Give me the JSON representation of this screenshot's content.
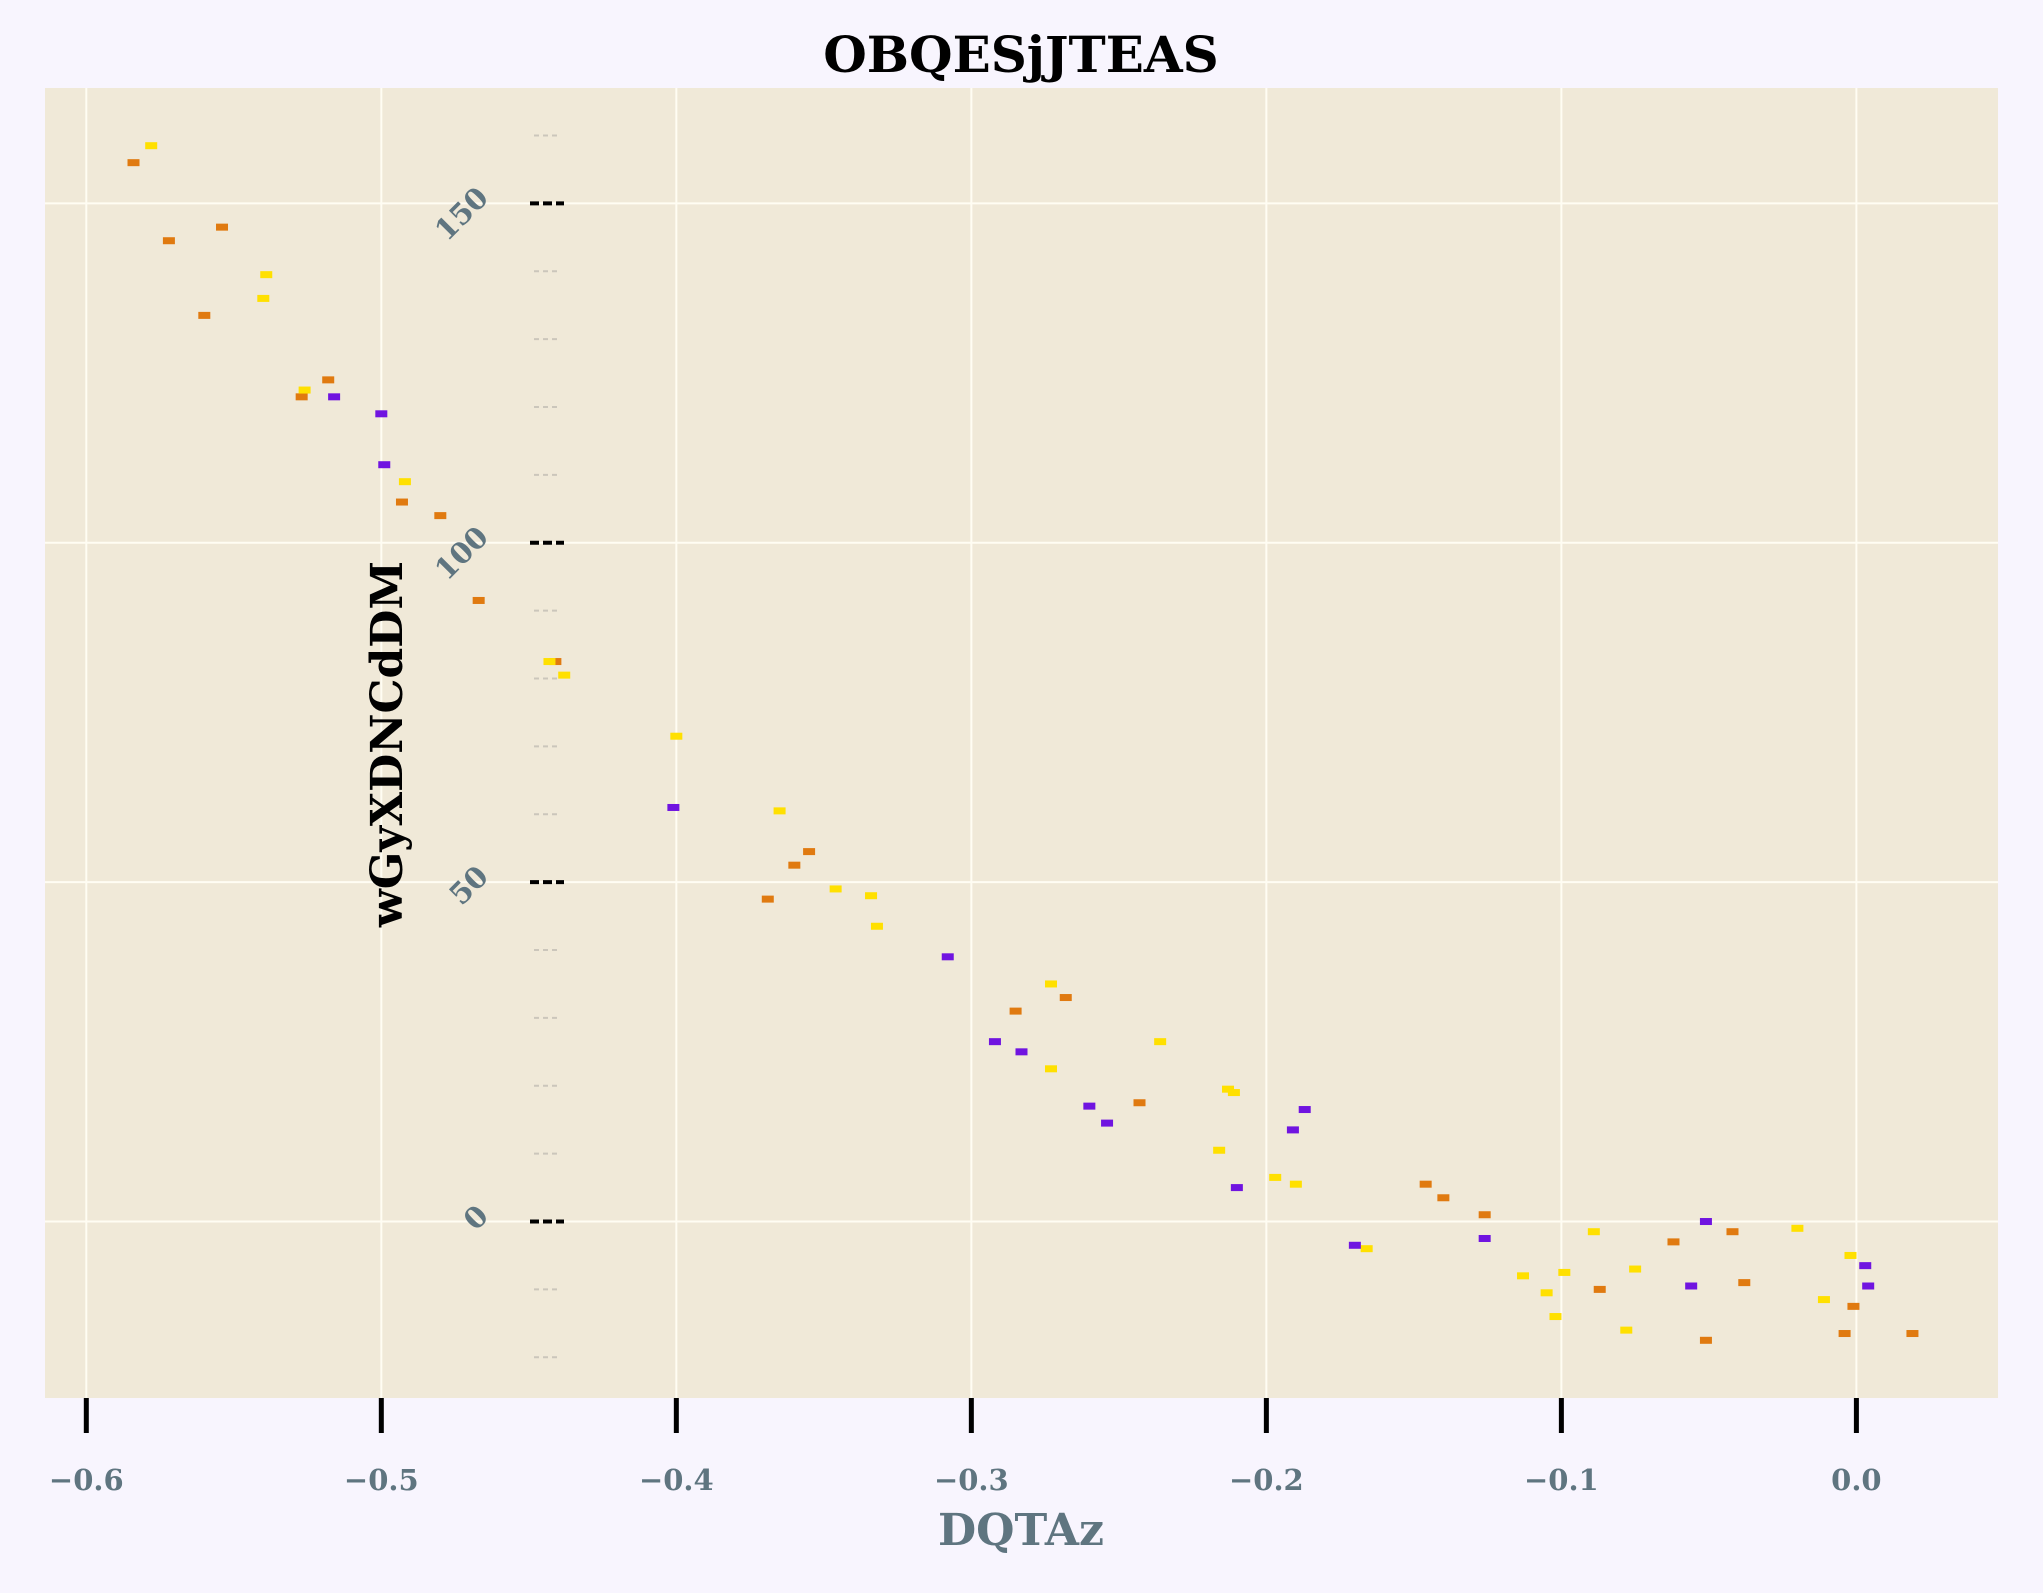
{
  "chart_data": {
    "type": "scatter",
    "title": "OBQESjJTEAS",
    "xlabel": "DQTAz",
    "ylabel": "wGyXDNCdDM",
    "xlim": [
      -0.614,
      0.048
    ],
    "ylim": [
      -26,
      167
    ],
    "x_ticks": [
      -0.6,
      -0.5,
      -0.4,
      -0.3,
      -0.2,
      -0.1,
      0.0
    ],
    "x_tick_labels": [
      "−0.6",
      "−0.5",
      "−0.4",
      "−0.3",
      "−0.2",
      "−0.1",
      "0.0"
    ],
    "y_ticks": [
      0,
      50,
      100,
      150
    ],
    "y_tick_labels": [
      "0",
      "50",
      "100",
      "150"
    ],
    "y_minor_ticks": [
      -20,
      -10,
      10,
      20,
      30,
      40,
      60,
      70,
      80,
      90,
      110,
      120,
      130,
      140,
      160
    ],
    "grid": true,
    "marker": "dash",
    "colors": {
      "background": "#f8f5fe",
      "plot_area": "#f0e9d8",
      "grid": "#fffdf3",
      "title": "#000000",
      "axis_label": "#5f7580",
      "tick_label": "#5f7580",
      "tick_mark": "#000000",
      "minor_tick": "#cbc6bb"
    },
    "series": [
      {
        "color": "#e07a10",
        "points": [
          {
            "x": -0.584,
            "y": 156
          },
          {
            "x": -0.572,
            "y": 144.5
          },
          {
            "x": -0.554,
            "y": 146.5
          },
          {
            "x": -0.56,
            "y": 133.5
          },
          {
            "x": -0.518,
            "y": 124
          },
          {
            "x": -0.527,
            "y": 121.5
          },
          {
            "x": -0.493,
            "y": 106
          },
          {
            "x": -0.48,
            "y": 104
          },
          {
            "x": -0.467,
            "y": 91.5
          },
          {
            "x": -0.441,
            "y": 82.5
          },
          {
            "x": -0.369,
            "y": 47.5
          },
          {
            "x": -0.36,
            "y": 52.5
          },
          {
            "x": -0.355,
            "y": 54.5
          },
          {
            "x": -0.285,
            "y": 31
          },
          {
            "x": -0.268,
            "y": 33
          },
          {
            "x": -0.243,
            "y": 17.5
          },
          {
            "x": -0.146,
            "y": 5.5
          },
          {
            "x": -0.14,
            "y": 3.5
          },
          {
            "x": -0.126,
            "y": 1
          },
          {
            "x": -0.087,
            "y": -10
          },
          {
            "x": -0.062,
            "y": -3
          },
          {
            "x": -0.042,
            "y": -1.5
          },
          {
            "x": -0.038,
            "y": -9
          },
          {
            "x": -0.051,
            "y": -17.5
          },
          {
            "x": -0.001,
            "y": -12.5
          },
          {
            "x": -0.004,
            "y": -16.5
          },
          {
            "x": 0.019,
            "y": -16.5
          }
        ]
      },
      {
        "color": "#ffe000",
        "points": [
          {
            "x": -0.578,
            "y": 158.5
          },
          {
            "x": -0.539,
            "y": 139.5
          },
          {
            "x": -0.54,
            "y": 136
          },
          {
            "x": -0.526,
            "y": 122.5
          },
          {
            "x": -0.492,
            "y": 109
          },
          {
            "x": -0.443,
            "y": 82.5
          },
          {
            "x": -0.438,
            "y": 80.5
          },
          {
            "x": -0.4,
            "y": 71.5
          },
          {
            "x": -0.365,
            "y": 60.5
          },
          {
            "x": -0.346,
            "y": 49
          },
          {
            "x": -0.334,
            "y": 48
          },
          {
            "x": -0.332,
            "y": 43.5
          },
          {
            "x": -0.273,
            "y": 35
          },
          {
            "x": -0.236,
            "y": 26.5
          },
          {
            "x": -0.273,
            "y": 22.5
          },
          {
            "x": -0.213,
            "y": 19.5
          },
          {
            "x": -0.211,
            "y": 19
          },
          {
            "x": -0.216,
            "y": 10.5
          },
          {
            "x": -0.197,
            "y": 6.5
          },
          {
            "x": -0.19,
            "y": 5.5
          },
          {
            "x": -0.166,
            "y": -4
          },
          {
            "x": -0.089,
            "y": -1.5
          },
          {
            "x": -0.113,
            "y": -8
          },
          {
            "x": -0.099,
            "y": -7.5
          },
          {
            "x": -0.105,
            "y": -10.5
          },
          {
            "x": -0.102,
            "y": -14
          },
          {
            "x": -0.078,
            "y": -16
          },
          {
            "x": -0.075,
            "y": -7
          },
          {
            "x": -0.02,
            "y": -1
          },
          {
            "x": -0.002,
            "y": -5
          },
          {
            "x": -0.011,
            "y": -11.5
          }
        ]
      },
      {
        "color": "#7014e0",
        "points": [
          {
            "x": -0.516,
            "y": 121.5
          },
          {
            "x": -0.5,
            "y": 119
          },
          {
            "x": -0.499,
            "y": 111.5
          },
          {
            "x": -0.401,
            "y": 61
          },
          {
            "x": -0.308,
            "y": 39
          },
          {
            "x": -0.292,
            "y": 26.5
          },
          {
            "x": -0.283,
            "y": 25
          },
          {
            "x": -0.26,
            "y": 17
          },
          {
            "x": -0.254,
            "y": 14.5
          },
          {
            "x": -0.21,
            "y": 5
          },
          {
            "x": -0.191,
            "y": 13.5
          },
          {
            "x": -0.187,
            "y": 16.5
          },
          {
            "x": -0.17,
            "y": -3.5
          },
          {
            "x": -0.126,
            "y": -2.5
          },
          {
            "x": -0.051,
            "y": 0
          },
          {
            "x": -0.056,
            "y": -9.5
          },
          {
            "x": 0.003,
            "y": -6.5
          },
          {
            "x": 0.004,
            "y": -9.5
          }
        ]
      }
    ]
  }
}
